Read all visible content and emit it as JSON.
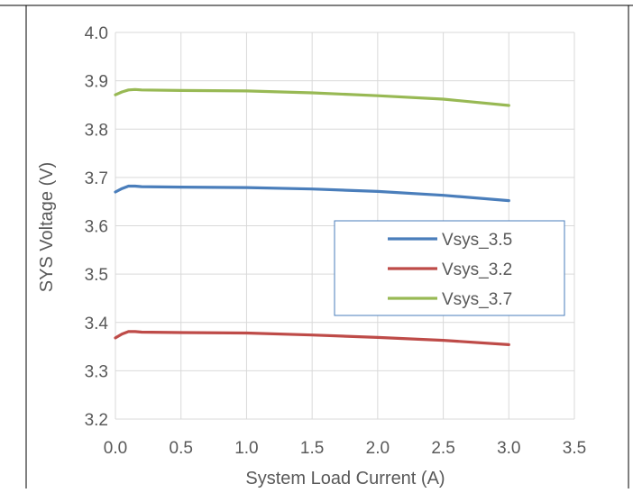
{
  "chart_data": {
    "type": "line",
    "title": "",
    "xlabel": "System Load Current (A)",
    "ylabel": "SYS Voltage (V)",
    "xlim": [
      0.0,
      3.5
    ],
    "ylim": [
      3.2,
      4.0
    ],
    "xticks": [
      "0.0",
      "0.5",
      "1.0",
      "1.5",
      "2.0",
      "2.5",
      "3.0",
      "3.5"
    ],
    "yticks": [
      "3.2",
      "3.3",
      "3.4",
      "3.5",
      "3.6",
      "3.7",
      "3.8",
      "3.9",
      "4.0"
    ],
    "grid": true,
    "legend_position": "center-right",
    "x": [
      0.0,
      0.05,
      0.1,
      0.15,
      0.2,
      0.5,
      1.0,
      1.5,
      2.0,
      2.5,
      3.0
    ],
    "series": [
      {
        "name": "Vsys_3.5",
        "color": "#4a7ebb",
        "values": [
          3.67,
          3.677,
          3.682,
          3.682,
          3.681,
          3.68,
          3.679,
          3.676,
          3.671,
          3.663,
          3.652
        ]
      },
      {
        "name": "Vsys_3.2",
        "color": "#be4b48",
        "values": [
          3.368,
          3.376,
          3.381,
          3.381,
          3.38,
          3.379,
          3.378,
          3.374,
          3.369,
          3.363,
          3.354
        ]
      },
      {
        "name": "Vsys_3.7",
        "color": "#98b954",
        "values": [
          3.871,
          3.877,
          3.881,
          3.882,
          3.881,
          3.88,
          3.879,
          3.875,
          3.869,
          3.862,
          3.849
        ]
      }
    ]
  }
}
